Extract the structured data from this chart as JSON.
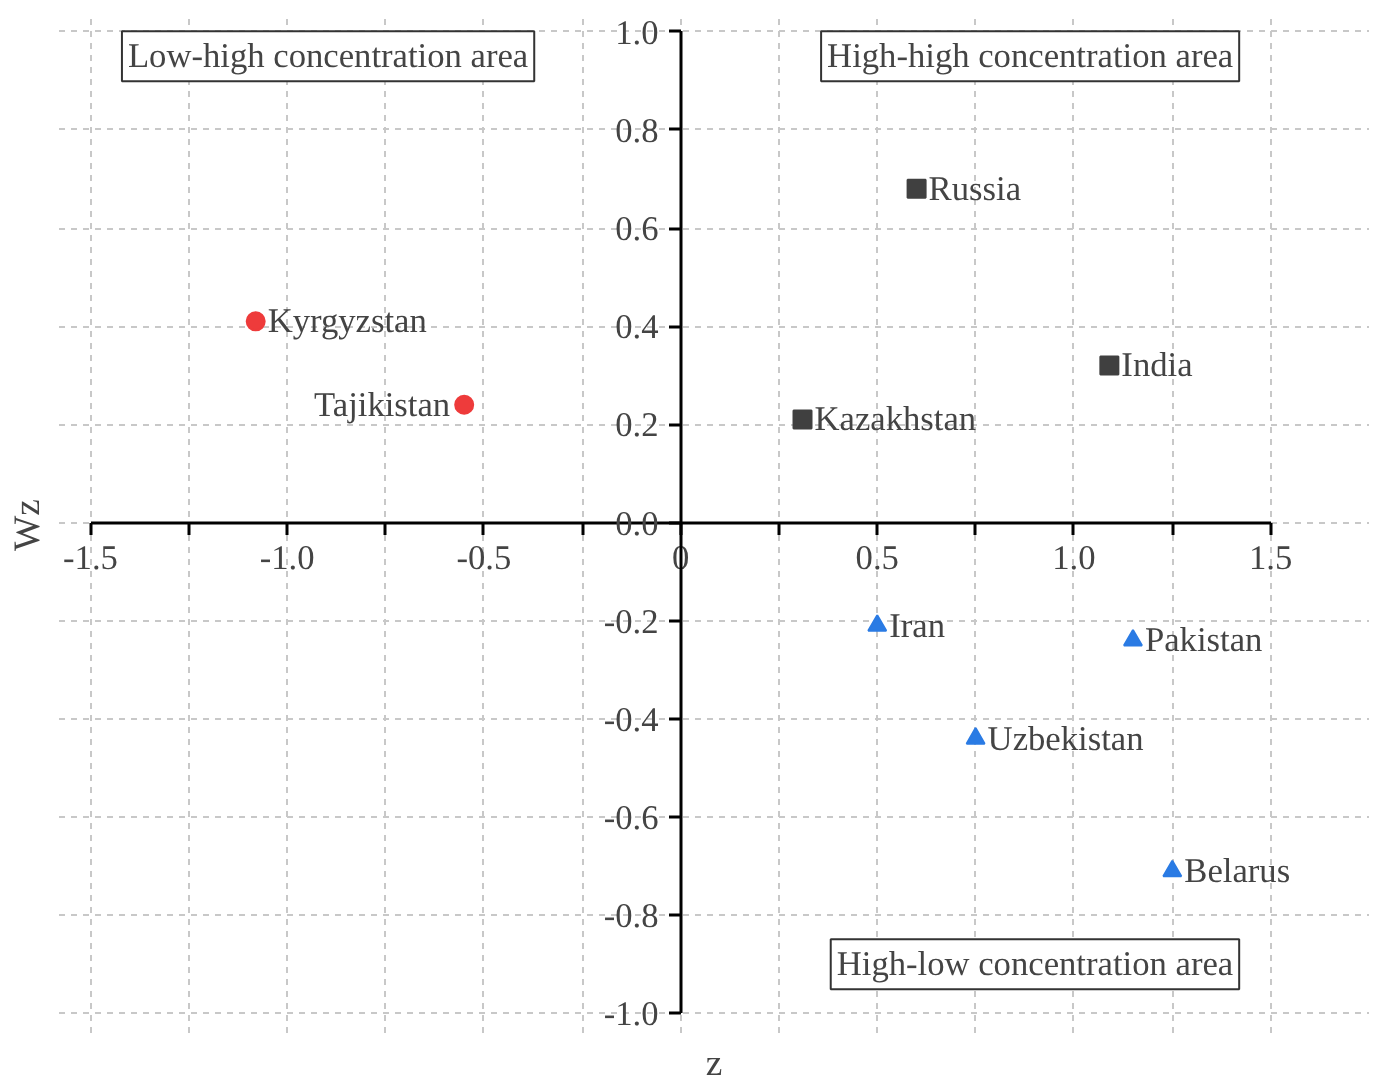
{
  "chart_data": {
    "type": "scatter",
    "xlabel": "z",
    "ylabel": "Wz",
    "xlim": [
      -1.5,
      1.5
    ],
    "ylim": [
      -1,
      1
    ],
    "xticks": [
      -1.5,
      {
        "value": -1.25,
        "label": null
      },
      {
        "value": -1,
        "label": "-1.0"
      },
      {
        "value": -0.75,
        "label": null
      },
      -0.5,
      {
        "value": -0.25,
        "label": null
      },
      0,
      {
        "value": 0.25,
        "label": null
      },
      0.5,
      {
        "value": 0.75,
        "label": null
      },
      {
        "value": 1,
        "label": "1.0"
      },
      {
        "value": 1.25,
        "label": null
      },
      1.5
    ],
    "yticks": [
      {
        "value": -1,
        "label": "-1.0"
      },
      -0.8,
      -0.6,
      -0.4,
      -0.2,
      {
        "value": 0,
        "label": "0.0"
      },
      0.2,
      0.4,
      0.6,
      0.8,
      {
        "value": 1,
        "label": "1.0"
      }
    ],
    "grid": true,
    "series": [
      {
        "color": "#ee3b3b",
        "marker": "circle",
        "x": [
          -1.08,
          -0.55
        ],
        "values": [
          0.41,
          0.24
        ]
      },
      {
        "color": "#404040",
        "marker": "square",
        "x": [
          0.6,
          1.09,
          0.31
        ],
        "values": [
          0.68,
          0.32,
          0.21
        ]
      },
      {
        "color": "#2a7be4",
        "marker": "triangle",
        "x": [
          0.5,
          1.15,
          0.75,
          1.25
        ],
        "values": [
          -0.21,
          -0.24,
          -0.44,
          -0.71
        ]
      }
    ],
    "annotations": [
      "Low-high concentration area",
      "High-high concentration area",
      "High-low concentration area",
      {
        "text": "Kyrgyzstan",
        "x": -1.08,
        "y": 0.41
      },
      {
        "text": "Tajikistan",
        "x": -0.55,
        "y": 0.24
      },
      {
        "text": "Russia",
        "x": 0.6,
        "y": 0.68
      },
      {
        "text": "India",
        "x": 1.09,
        "y": 0.32
      },
      {
        "text": "Kazakhstan",
        "x": 0.31,
        "y": 0.21
      },
      {
        "text": "Iran",
        "x": 0.5,
        "y": -0.21
      },
      {
        "text": "Pakistan",
        "x": 1.15,
        "y": -0.24
      },
      {
        "text": "Uzbekistan",
        "x": 0.75,
        "y": -0.44
      },
      {
        "text": "Belarus",
        "x": 1.25,
        "y": -0.71
      }
    ]
  }
}
